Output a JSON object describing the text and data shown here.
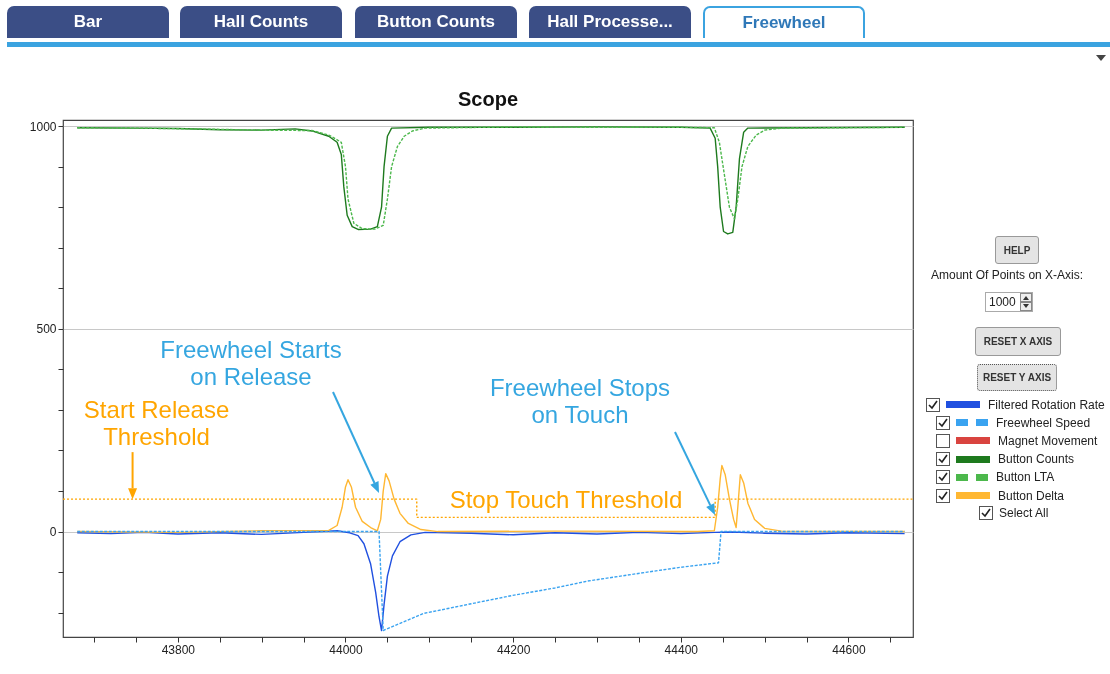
{
  "chart_data": {
    "type": "line",
    "title": "Scope",
    "xlim": [
      43663,
      44677
    ],
    "xticks": [
      {
        "value": 43700,
        "label": null
      },
      {
        "value": 43750,
        "label": null
      },
      43800,
      {
        "value": 43850,
        "label": null
      },
      {
        "value": 43900,
        "label": null
      },
      {
        "value": 43950,
        "label": null
      },
      44000,
      {
        "value": 44050,
        "label": null
      },
      {
        "value": 44100,
        "label": null
      },
      {
        "value": 44150,
        "label": null
      },
      44200,
      {
        "value": 44250,
        "label": null
      },
      {
        "value": 44300,
        "label": null
      },
      {
        "value": 44350,
        "label": null
      },
      44400,
      {
        "value": 44450,
        "label": null
      },
      {
        "value": 44500,
        "label": null
      },
      {
        "value": 44550,
        "label": null
      },
      44600,
      {
        "value": 44650,
        "label": null
      }
    ],
    "ylim": [
      -260,
      1015
    ],
    "yticks": [
      {
        "value": -200,
        "label": null
      },
      {
        "value": -100,
        "label": null
      },
      0,
      {
        "value": 100,
        "label": null
      },
      {
        "value": 200,
        "label": null
      },
      {
        "value": 300,
        "label": null
      },
      {
        "value": 400,
        "label": null
      },
      500,
      {
        "value": 600,
        "label": null
      },
      {
        "value": 700,
        "label": null
      },
      {
        "value": 800,
        "label": null
      },
      {
        "value": 900,
        "label": null
      },
      1000
    ],
    "grid": "y",
    "legend": "right",
    "marker": "none",
    "line_style": "solid",
    "series": [
      {
        "name": "Filtered Rotation Rate",
        "color": "#2050e0",
        "x": [
          43680,
          43720,
          43760,
          43800,
          43850,
          43900,
          43950,
          43990,
          44005,
          44015,
          44022,
          44030,
          44036,
          44040,
          44043,
          44046,
          44050,
          44056,
          44065,
          44078,
          44095,
          44150,
          44200,
          44250,
          44300,
          44350,
          44400,
          44440,
          44460,
          44500,
          44550,
          44600,
          44667
        ],
        "values": [
          -3,
          -5,
          -2,
          -6,
          -3,
          -7,
          -2,
          2,
          -3,
          -10,
          -30,
          -80,
          -150,
          -210,
          -244,
          -180,
          -110,
          -60,
          -25,
          -8,
          -2,
          -4,
          -8,
          -3,
          -6,
          -2,
          -5,
          -2,
          -1,
          -4,
          -6,
          -3,
          -5
        ]
      },
      {
        "name": "Freewheel Speed",
        "color": "#3aa3f0",
        "line_style": "dashed",
        "x": [
          43680,
          44040,
          44045,
          44093,
          44150,
          44198,
          44250,
          44289,
          44360,
          44400,
          44445,
          44448,
          44667
        ],
        "values": [
          0,
          0,
          -244,
          -202,
          -178,
          -158,
          -139,
          -122,
          -100,
          -88,
          -77,
          0,
          0
        ]
      },
      {
        "name": "Magnet Movement",
        "color": "#d9443f"
      },
      {
        "name": "Button Counts",
        "color": "#1e7a1e",
        "x": [
          43680,
          43750,
          43800,
          43850,
          43900,
          43940,
          43960,
          43980,
          43990,
          43995,
          43998,
          44002,
          44008,
          44015,
          44030,
          44038,
          44043,
          44046,
          44050,
          44055,
          44100,
          44200,
          44300,
          44400,
          44435,
          44441,
          44444,
          44447,
          44451,
          44456,
          44462,
          44466,
          44470,
          44475,
          44480,
          44550,
          44667
        ],
        "values": [
          996,
          995,
          994,
          991,
          990,
          993,
          988,
          975,
          960,
          930,
          850,
          780,
          752,
          745,
          746,
          752,
          800,
          900,
          975,
          995,
          997,
          997,
          998,
          997,
          995,
          970,
          900,
          800,
          740,
          734,
          738,
          800,
          920,
          985,
          995,
          996,
          997
        ]
      },
      {
        "name": "Button LTA",
        "color": "#4cb84c",
        "line_style": "dashed",
        "x": [
          43680,
          43750,
          43850,
          43900,
          43960,
          43980,
          43995,
          44000,
          44003,
          44010,
          44020,
          44035,
          44045,
          44050,
          44055,
          44062,
          44070,
          44080,
          44095,
          44200,
          44300,
          44400,
          44440,
          44446,
          44452,
          44458,
          44464,
          44468,
          44473,
          44480,
          44490,
          44500,
          44520,
          44667
        ],
        "values": [
          996,
          995,
          992,
          990,
          989,
          978,
          960,
          900,
          820,
          760,
          747,
          746,
          755,
          820,
          900,
          950,
          975,
          988,
          995,
          998,
          997,
          997,
          996,
          960,
          880,
          800,
          771,
          820,
          900,
          950,
          978,
          990,
          995,
          997
        ]
      },
      {
        "name": "Button Delta",
        "color": "#ffb732",
        "x": [
          43680,
          43800,
          43900,
          43980,
          43990,
          43996,
          44000,
          44003,
          44007,
          44012,
          44020,
          44030,
          44038,
          44042,
          44045,
          44048,
          44052,
          44058,
          44065,
          44075,
          44090,
          44110,
          44250,
          44420,
          44440,
          44444,
          44447,
          44449,
          44453,
          44458,
          44463,
          44466,
          44468,
          44471,
          44475,
          44480,
          44488,
          44500,
          44520,
          44667
        ],
        "values": [
          0,
          -2,
          2,
          3,
          15,
          60,
          110,
          128,
          110,
          60,
          25,
          10,
          2,
          30,
          100,
          143,
          125,
          80,
          45,
          20,
          5,
          0,
          1,
          0,
          2,
          60,
          130,
          163,
          140,
          80,
          30,
          10,
          60,
          140,
          120,
          70,
          30,
          8,
          1,
          0
        ]
      },
      {
        "type": "step",
        "color": "#ffa500",
        "line_style": "dotted",
        "x": [
          43663,
          44085,
          44441,
          44677
        ],
        "values": [
          80,
          35,
          80,
          80
        ]
      }
    ],
    "annotations": [
      {
        "text": "Start Release Threshold",
        "x": 43746,
        "y": 80
      },
      {
        "text": "Stop Touch Threshold",
        "x": 44263,
        "y": 35
      },
      "Freewheel Starts on Release",
      "Freewheel Stops on Touch",
      "Bar",
      "Hall Counts",
      "Button Counts",
      "Hall Processe...",
      "Freewheel",
      "HELP",
      "Amount Of Points on X-Axis:",
      "1000",
      "RESET X AXIS",
      "RESET Y AXIS",
      "Select All"
    ]
  }
}
